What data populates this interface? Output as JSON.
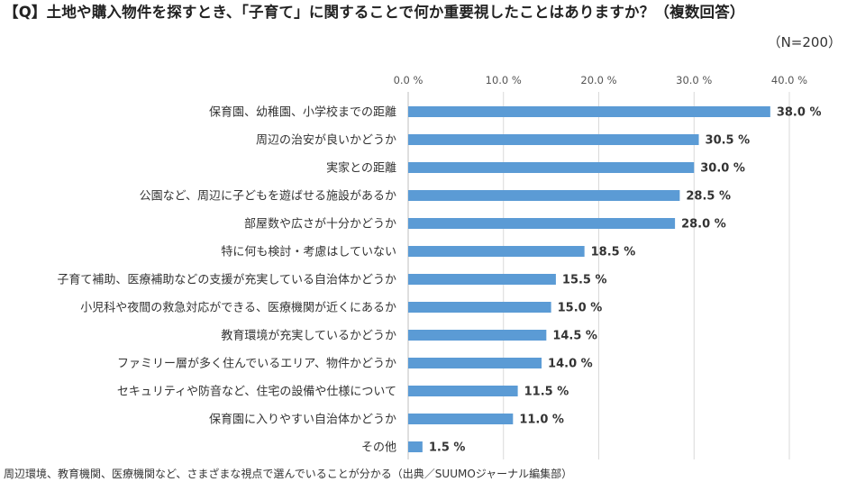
{
  "header": {
    "title": "【Q】土地や購入物件を探すとき、「子育て」に関することで何か重要視したことはありますか？（複数回答）",
    "sample_size": "（N=200）"
  },
  "footer": {
    "caption": "周辺環境、教育機関、医療機関など、さまざまな視点で選んでいることが分かる（出典／SUUMOジャーナル編集部）"
  },
  "chart_data": {
    "type": "bar",
    "orientation": "horizontal",
    "categories": [
      "保育園、幼稚園、小学校までの距離",
      "周辺の治安が良いかどうか",
      "実家との距離",
      "公園など、周辺に子どもを遊ばせる施設があるか",
      "部屋数や広さが十分かどうか",
      "特に何も検討・考慮はしていない",
      "子育て補助、医療補助などの支援が充実している自治体かどうか",
      "小児科や夜間の救急対応ができる、医療機関が近くにあるか",
      "教育環境が充実しているかどうか",
      "ファミリー層が多く住んでいるエリア、物件かどうか",
      "セキュリティや防音など、住宅の設備や仕様について",
      "保育園に入りやすい自治体かどうか",
      "その他"
    ],
    "values": [
      38.0,
      30.5,
      30.0,
      28.5,
      28.0,
      18.5,
      15.5,
      15.0,
      14.5,
      14.0,
      11.5,
      11.0,
      1.5
    ],
    "value_labels": [
      "38.0 %",
      "30.5 %",
      "30.0 %",
      "28.5 %",
      "28.0 %",
      "18.5 %",
      "15.5 %",
      "15.0 %",
      "14.5 %",
      "14.0 %",
      "11.5 %",
      "11.0 %",
      "1.5 %"
    ],
    "xticks": [
      0,
      10,
      20,
      30,
      40
    ],
    "xtick_labels": [
      "0.0 %",
      "10.0 %",
      "20.0 %",
      "30.0 %",
      "40.0 %"
    ],
    "xlim": [
      0,
      40
    ],
    "grid": true,
    "axis_position": "top",
    "bar_color": "#5b9bd5",
    "grid_color": "#d9d9d9"
  }
}
